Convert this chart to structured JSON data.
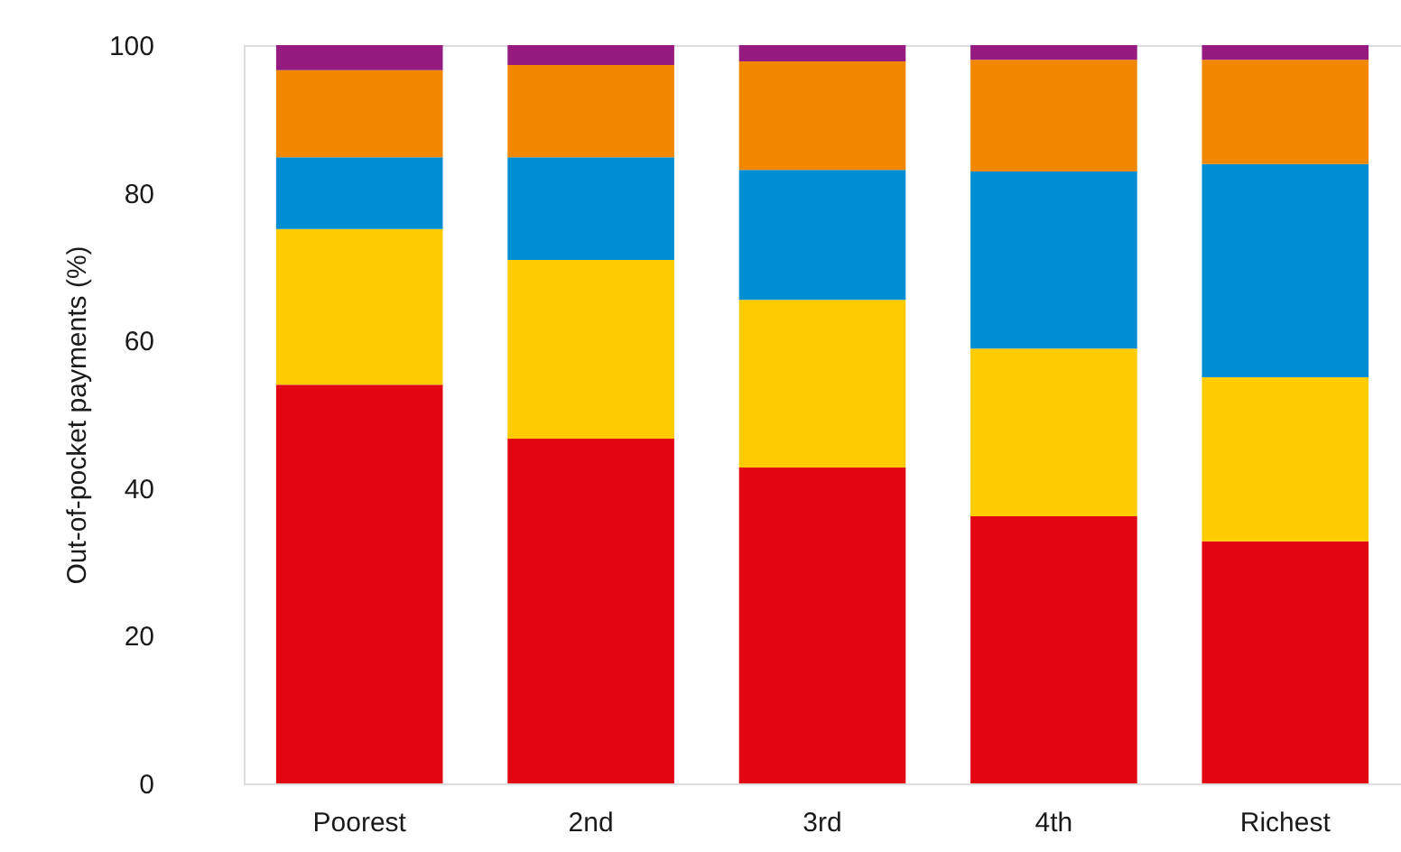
{
  "chart_data": {
    "type": "bar",
    "stacked": true,
    "ylabel": "Out-of-pocket payments (%)",
    "categories": [
      "Poorest",
      "2nd",
      "3rd",
      "4th",
      "Richest"
    ],
    "series": [
      {
        "color": "#e20613",
        "values": [
          54.0,
          46.7,
          42.8,
          36.2,
          32.8
        ]
      },
      {
        "color": "#fecc00",
        "values": [
          21.1,
          24.2,
          22.7,
          22.7,
          22.2
        ]
      },
      {
        "color": "#008ed3",
        "values": [
          9.7,
          13.9,
          17.6,
          24.0,
          28.9
        ]
      },
      {
        "color": "#f18800",
        "values": [
          11.8,
          12.5,
          14.7,
          15.1,
          14.1
        ]
      },
      {
        "color": "#951b81",
        "values": [
          3.4,
          2.7,
          2.2,
          2.0,
          2.0
        ]
      }
    ],
    "ylim": [
      0,
      100
    ],
    "yticks": [
      0,
      20,
      40,
      60,
      80,
      100
    ],
    "grid": false,
    "legend": false
  }
}
